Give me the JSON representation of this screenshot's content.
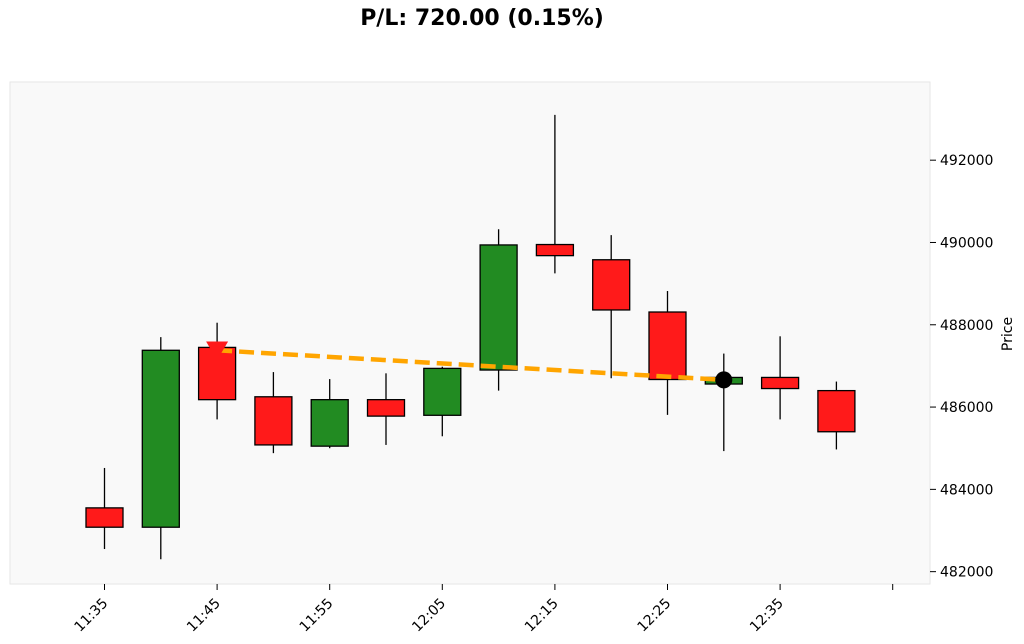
{
  "title": "P/L: 720.00 (0.15%)",
  "chart_data": {
    "type": "candlestick",
    "title": "P/L: 720.00 (0.15%)",
    "xlabel": "",
    "ylabel": "Price",
    "ylim": [
      481700,
      493900
    ],
    "y_ticks": [
      482000,
      484000,
      486000,
      488000,
      490000,
      492000
    ],
    "x_tick_labels": [
      "11:35",
      "11:45",
      "11:55",
      "12:05",
      "12:15",
      "12:25",
      "12:35"
    ],
    "grid": false,
    "background": "#f9f9f9",
    "colors": {
      "up": "#228b22",
      "down": "#ff1a1a",
      "trade_line": "#ffa500",
      "entry_marker": "#ff1a1a",
      "exit_marker": "#000000"
    },
    "candles": [
      {
        "time": "11:35",
        "open": 483550,
        "high": 484520,
        "low": 482550,
        "close": 483080
      },
      {
        "time": "11:40",
        "open": 483080,
        "high": 487700,
        "low": 482300,
        "close": 487380
      },
      {
        "time": "11:45",
        "open": 487450,
        "high": 488050,
        "low": 485700,
        "close": 486180
      },
      {
        "time": "11:50",
        "open": 486250,
        "high": 486850,
        "low": 484880,
        "close": 485080
      },
      {
        "time": "11:55",
        "open": 485050,
        "high": 486680,
        "low": 485000,
        "close": 486180
      },
      {
        "time": "12:00",
        "open": 486180,
        "high": 486820,
        "low": 485080,
        "close": 485780
      },
      {
        "time": "12:05",
        "open": 485800,
        "high": 486980,
        "low": 485290,
        "close": 486940
      },
      {
        "time": "12:10",
        "open": 486900,
        "high": 490320,
        "low": 486400,
        "close": 489940
      },
      {
        "time": "12:15",
        "open": 489950,
        "high": 493100,
        "low": 489250,
        "close": 489680
      },
      {
        "time": "12:20",
        "open": 489580,
        "high": 490180,
        "low": 486700,
        "close": 488360
      },
      {
        "time": "12:25",
        "open": 488310,
        "high": 488820,
        "low": 485810,
        "close": 486670
      },
      {
        "time": "12:30",
        "open": 486560,
        "high": 487300,
        "low": 484930,
        "close": 486720
      },
      {
        "time": "12:35",
        "open": 486720,
        "high": 487720,
        "low": 485700,
        "close": 486450
      },
      {
        "time": "12:40",
        "open": 486400,
        "high": 486620,
        "low": 484970,
        "close": 485400
      }
    ],
    "trade": {
      "entry": {
        "time": "11:45",
        "price": 487380,
        "marker": "down-triangle"
      },
      "exit": {
        "time": "12:30",
        "price": 486660,
        "marker": "circle"
      }
    }
  }
}
